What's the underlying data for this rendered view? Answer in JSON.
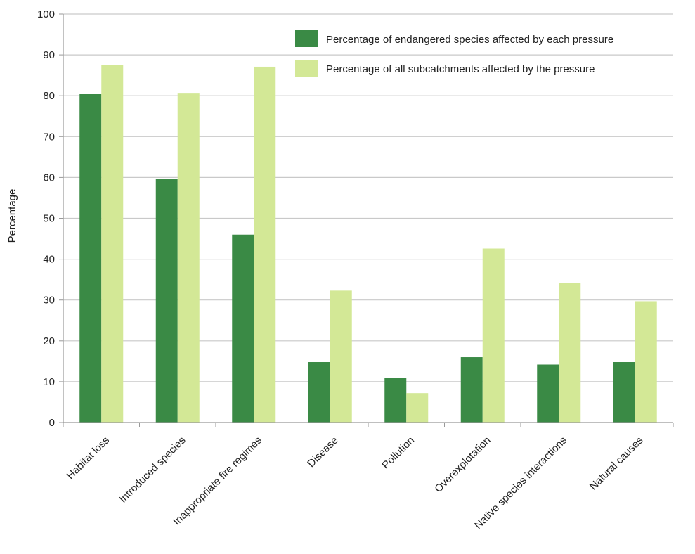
{
  "chart_data": {
    "type": "bar",
    "title": "",
    "xlabel": "",
    "ylabel": "Percentage",
    "ylim": [
      0,
      100
    ],
    "yticks": [
      0,
      10,
      20,
      30,
      40,
      50,
      60,
      70,
      80,
      90,
      100
    ],
    "grid": true,
    "legend_position": "top-right",
    "categories": [
      "Habitat loss",
      "Introduced species",
      "Inappropriate fire regimes",
      "Disease",
      "Pollution",
      "Overexplotation",
      "Native species interactions",
      "Natural causes"
    ],
    "series": [
      {
        "name": "Percentage of endangered species affected by each pressure",
        "color": "#3a8a45",
        "values": [
          80.5,
          59.7,
          46.0,
          14.8,
          11.0,
          16.0,
          14.2,
          14.8
        ]
      },
      {
        "name": "Percentage of all subcatchments affected by the pressure",
        "color": "#d3e896",
        "values": [
          87.5,
          80.7,
          87.1,
          32.3,
          7.2,
          42.6,
          34.2,
          29.7
        ]
      }
    ]
  }
}
